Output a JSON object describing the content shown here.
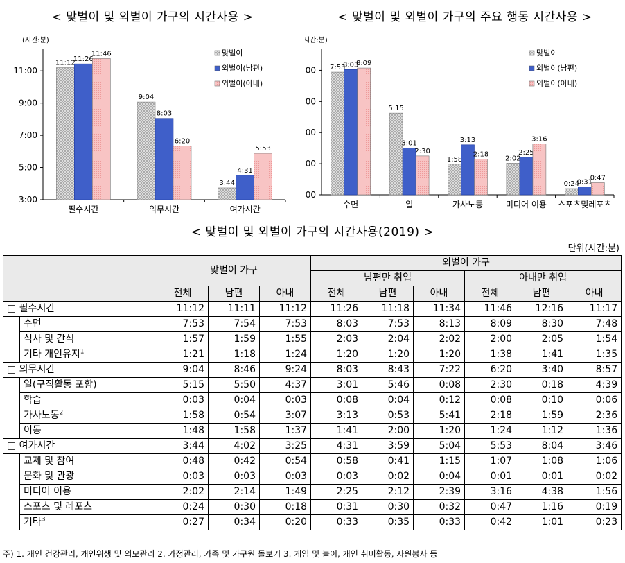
{
  "chart_data": [
    {
      "type": "bar",
      "title": "< 맞벌이 및 외벌이 가구의 시간사용 >",
      "ylabel": "(시간:분)",
      "categories": [
        "필수시간",
        "의무시간",
        "여가시간"
      ],
      "ylim": [
        3,
        12
      ],
      "yticks": [
        "3:00",
        "5:00",
        "7:00",
        "9:00",
        "11:00"
      ],
      "series": [
        {
          "name": "맞벌이",
          "color": "#d4d4d4",
          "values": [
            11.2,
            9.067,
            3.733
          ],
          "labels": [
            "11:12",
            "9:04",
            "3:44"
          ]
        },
        {
          "name": "외벌이(남편)",
          "color": "#3f5fc9",
          "values": [
            11.433,
            8.05,
            4.517
          ],
          "labels": [
            "11:26",
            "8:03",
            "4:31"
          ]
        },
        {
          "name": "외벌이(아내)",
          "color": "#f6b8b8",
          "values": [
            11.767,
            6.333,
            5.883
          ],
          "labels": [
            "11:46",
            "6:20",
            "5:53"
          ]
        }
      ]
    },
    {
      "type": "bar",
      "title": "< 맞벌이 및 외벌이 가구의 주요 행동 시간사용 >",
      "ylabel": "(시간:분)",
      "categories": [
        "수면",
        "일",
        "가사노동",
        "미디어 이용",
        "스포츠및레포츠"
      ],
      "ylim": [
        0,
        9
      ],
      "yticks": [
        "0:00",
        "2:00",
        "4:00",
        "6:00",
        "8:00"
      ],
      "series": [
        {
          "name": "맞벌이",
          "color": "#d4d4d4",
          "values": [
            7.883,
            5.25,
            1.967,
            2.033,
            0.4
          ],
          "labels": [
            "7:53",
            "5:15",
            "1:58",
            "2:02",
            "0:24"
          ]
        },
        {
          "name": "외벌이(남편)",
          "color": "#3f5fc9",
          "values": [
            8.05,
            3.017,
            3.217,
            2.417,
            0.517
          ],
          "labels": [
            "8:03",
            "3:01",
            "3:13",
            "2:25",
            "0:31"
          ]
        },
        {
          "name": "외벌이(아내)",
          "color": "#f6b8b8",
          "values": [
            8.15,
            2.5,
            2.3,
            3.267,
            0.783
          ],
          "labels": [
            "8:09",
            "2:30",
            "2:18",
            "3:16",
            "0:47"
          ]
        }
      ]
    },
    {
      "type": "table",
      "title": "< 맞벌이 및 외벌이 가구의 시간사용(2019) >",
      "unit": "단위(시간:분)",
      "header": {
        "group1": "맞벌이 가구",
        "group2": "외벌이 가구",
        "sub1": "남편만 취업",
        "sub2": "아내만 취업",
        "cols": [
          "전체",
          "남편",
          "아내",
          "전체",
          "남편",
          "아내",
          "전체",
          "남편",
          "아내"
        ]
      },
      "rows": [
        {
          "label": "□ 필수시간",
          "level": 0,
          "values": [
            "11:12",
            "11:11",
            "11:12",
            "11:26",
            "11:18",
            "11:34",
            "11:46",
            "12:16",
            "11:17"
          ]
        },
        {
          "label": "수면",
          "level": 1,
          "values": [
            "7:53",
            "7:54",
            "7:53",
            "8:03",
            "7:53",
            "8:13",
            "8:09",
            "8:30",
            "7:48"
          ]
        },
        {
          "label": "식사 및 간식",
          "level": 1,
          "values": [
            "1:57",
            "1:59",
            "1:55",
            "2:03",
            "2:04",
            "2:02",
            "2:00",
            "2:05",
            "1:54"
          ]
        },
        {
          "label": "기타 개인유지",
          "sup": "1",
          "level": 1,
          "values": [
            "1:21",
            "1:18",
            "1:24",
            "1:20",
            "1:20",
            "1:20",
            "1:38",
            "1:41",
            "1:35"
          ]
        },
        {
          "label": "□ 의무시간",
          "level": 0,
          "values": [
            "9:04",
            "8:46",
            "9:24",
            "8:03",
            "8:43",
            "7:22",
            "6:20",
            "3:40",
            "8:57"
          ]
        },
        {
          "label": "일(구직활동 포함)",
          "level": 1,
          "values": [
            "5:15",
            "5:50",
            "4:37",
            "3:01",
            "5:46",
            "0:08",
            "2:30",
            "0:18",
            "4:39"
          ]
        },
        {
          "label": "학습",
          "level": 1,
          "values": [
            "0:03",
            "0:04",
            "0:03",
            "0:08",
            "0:04",
            "0:12",
            "0:08",
            "0:10",
            "0:06"
          ]
        },
        {
          "label": "가사노동",
          "sup": "2",
          "level": 1,
          "values": [
            "1:58",
            "0:54",
            "3:07",
            "3:13",
            "0:53",
            "5:41",
            "2:18",
            "1:59",
            "2:36"
          ]
        },
        {
          "label": "이동",
          "level": 1,
          "values": [
            "1:48",
            "1:58",
            "1:37",
            "1:41",
            "2:00",
            "1:20",
            "1:24",
            "1:12",
            "1:36"
          ]
        },
        {
          "label": "□ 여가시간",
          "level": 0,
          "values": [
            "3:44",
            "4:02",
            "3:25",
            "4:31",
            "3:59",
            "5:04",
            "5:53",
            "8:04",
            "3:46"
          ]
        },
        {
          "label": "교제 및 참여",
          "level": 1,
          "values": [
            "0:48",
            "0:42",
            "0:54",
            "0:58",
            "0:41",
            "1:15",
            "1:07",
            "1:08",
            "1:06"
          ]
        },
        {
          "label": "문화 및 관광",
          "level": 1,
          "values": [
            "0:03",
            "0:03",
            "0:03",
            "0:03",
            "0:02",
            "0:04",
            "0:01",
            "0:01",
            "0:02"
          ]
        },
        {
          "label": "미디어 이용",
          "level": 1,
          "values": [
            "2:02",
            "2:14",
            "1:49",
            "2:25",
            "2:12",
            "2:39",
            "3:16",
            "4:38",
            "1:56"
          ]
        },
        {
          "label": "스포츠 및 레포츠",
          "level": 1,
          "values": [
            "0:24",
            "0:30",
            "0:18",
            "0:31",
            "0:30",
            "0:32",
            "0:47",
            "1:16",
            "0:19"
          ]
        },
        {
          "label": "기타",
          "sup": "3",
          "level": 1,
          "values": [
            "0:27",
            "0:34",
            "0:20",
            "0:33",
            "0:35",
            "0:33",
            "0:42",
            "1:01",
            "0:23"
          ]
        }
      ]
    }
  ],
  "footnote": "주) 1. 개인 건강관리, 개인위생 및 외모관리   2. 가정관리, 가족 및 가구원 돌보기   3. 게임 및 놀이, 개인 취미활동, 자원봉사 등"
}
